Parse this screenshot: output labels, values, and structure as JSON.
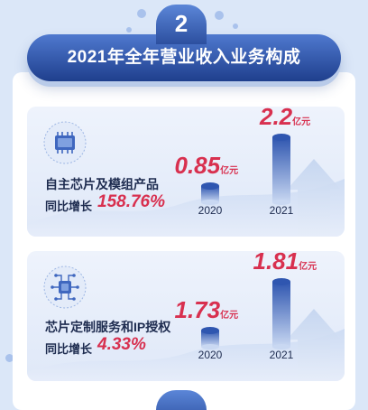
{
  "section": {
    "number": "2",
    "title": "2021年全年营业收入业务构成"
  },
  "chart_data": [
    {
      "type": "bar",
      "category": "自主芯片及模组产品",
      "yoy_label": "同比增长",
      "yoy_value": "158.76%",
      "categories": [
        "2020",
        "2021"
      ],
      "values": [
        0.85,
        2.2
      ],
      "value_labels": [
        "0.85",
        "2.2"
      ],
      "unit": "亿元",
      "icon": "chip-icon"
    },
    {
      "type": "bar",
      "category": "芯片定制服务和IP授权",
      "yoy_label": "同比增长",
      "yoy_value": "4.33%",
      "categories": [
        "2020",
        "2021"
      ],
      "values": [
        1.73,
        1.81
      ],
      "value_labels": [
        "1.73",
        "1.81"
      ],
      "unit": "亿元",
      "icon": "circuit-chip-icon"
    }
  ],
  "colors": {
    "accent_red": "#d8304f",
    "brand_blue": "#2c4f9f",
    "bar_top": "#2f56b0",
    "bar_bottom": "#c9d8f2"
  }
}
